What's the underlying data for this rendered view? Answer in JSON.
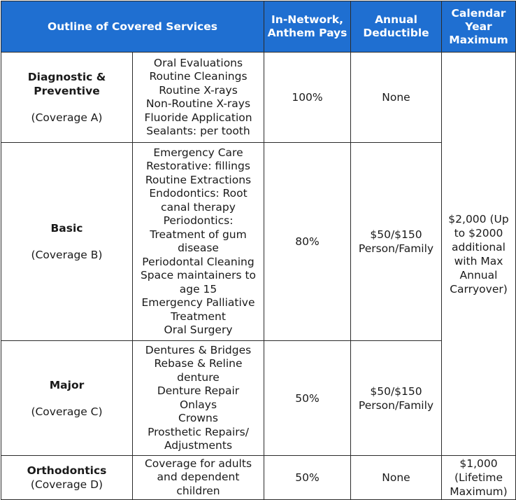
{
  "headers": {
    "outline": "Outline of Covered Services",
    "in_network": "In-Network, Anthem Pays",
    "deductible": "Annual Deductible",
    "maximum": "Calendar Year Maximum"
  },
  "rows": [
    {
      "category": "Diagnostic & Preventive",
      "coverage": "(Coverage A)",
      "services": [
        "Oral Evaluations",
        "Routine Cleanings",
        "Routine X-rays",
        "Non-Routine X-rays",
        "Fluoride Application",
        "Sealants: per tooth"
      ],
      "pays": "100%",
      "deductible": "None"
    },
    {
      "category": "Basic",
      "coverage": "(Coverage B)",
      "services": [
        "Emergency Care",
        "Restorative: fillings",
        "Routine Extractions",
        "Endodontics: Root canal therapy",
        "Periodontics: Treatment of gum disease",
        "Periodontal Cleaning",
        "Space maintainers to age 15",
        "Emergency Palliative Treatment",
        "Oral Surgery"
      ],
      "pays": "80%",
      "deductible": "$50/$150 Person/Family"
    },
    {
      "category": "Major",
      "coverage": "(Coverage C)",
      "services": [
        "Dentures & Bridges",
        "Rebase & Reline denture",
        "Denture Repair",
        "Onlays",
        "Crowns",
        "Prosthetic Repairs/ Adjustments"
      ],
      "pays": "50%",
      "deductible": "$50/$150 Person/Family"
    },
    {
      "category": "Orthodontics",
      "coverage": "(Coverage D)",
      "services": [
        "Coverage for adults and dependent children"
      ],
      "pays": "50%",
      "deductible": "None"
    }
  ],
  "calendar_maximum_abc": "$2,000 (Up to $2000 additional with Max Annual Carryover)",
  "calendar_maximum_d": "$1,000 (Lifetime Maximum)"
}
